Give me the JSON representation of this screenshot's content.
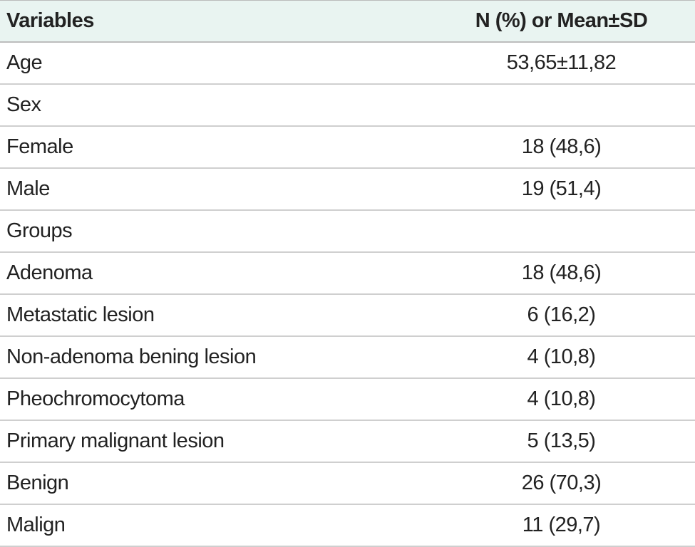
{
  "table": {
    "header": [
      "Variables",
      "N (%) or Mean±SD"
    ],
    "rows": [
      [
        "Age",
        "53,65±11,82"
      ],
      [
        "Sex"
      ],
      [
        "Female",
        "18 (48,6)"
      ],
      [
        "Male",
        "19 (51,4)"
      ],
      [
        "Groups"
      ],
      [
        "Adenoma",
        "18 (48,6)"
      ],
      [
        "Metastatic lesion",
        "6 (16,2)"
      ],
      [
        "Non-adenoma bening lesion",
        "4 (10,8)"
      ],
      [
        "Pheochromocytoma",
        "4 (10,8)"
      ],
      [
        "Primary malignant lesion",
        "5 (13,5)"
      ],
      [
        "Benign",
        "26 (70,3)"
      ],
      [
        "Malign",
        "11 (29,7)"
      ]
    ]
  }
}
